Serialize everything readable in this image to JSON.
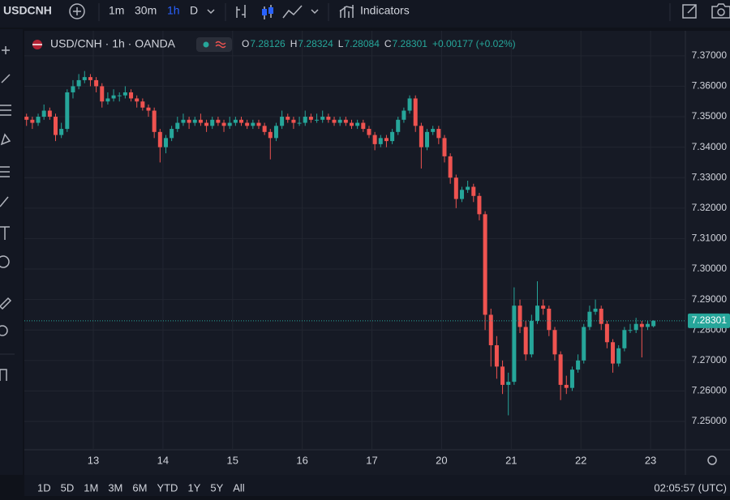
{
  "toolbar": {
    "symbol": "USDCNH",
    "intervals": [
      "1m",
      "30m",
      "1h",
      "D"
    ],
    "active_interval_index": 2,
    "indicators": "Indicators"
  },
  "chart_data": {
    "type": "candlestick",
    "title": "USD/CNH · 1h · OANDA",
    "ohlc_labels": [
      "O",
      "H",
      "L",
      "C"
    ],
    "change": "+0.00177 (+0.02%)",
    "up_color": "#26a69a",
    "down_color": "#ef5350",
    "grid": true,
    "last_price_line": true,
    "xlim": [
      -0.38,
      113.5
    ],
    "xticks": [
      {
        "value": 11.5,
        "label": "13"
      },
      {
        "value": 23.5,
        "label": "14"
      },
      {
        "value": 35.5,
        "label": "15"
      },
      {
        "value": 47.5,
        "label": "16"
      },
      {
        "value": 59.5,
        "label": "17"
      },
      {
        "value": 71.5,
        "label": "20"
      },
      {
        "value": 83.5,
        "label": "21"
      },
      {
        "value": 95.5,
        "label": "22"
      },
      {
        "value": 107.5,
        "label": "23"
      }
    ],
    "ylim": [
      7.2407,
      7.3782
    ],
    "yticks": [
      {
        "value": 7.37,
        "label": "7.37000"
      },
      {
        "value": 7.36,
        "label": "7.36000"
      },
      {
        "value": 7.35,
        "label": "7.35000"
      },
      {
        "value": 7.34,
        "label": "7.34000"
      },
      {
        "value": 7.33,
        "label": "7.33000"
      },
      {
        "value": 7.32,
        "label": "7.32000"
      },
      {
        "value": 7.31,
        "label": "7.31000"
      },
      {
        "value": 7.3,
        "label": "7.30000"
      },
      {
        "value": 7.29,
        "label": "7.29000"
      },
      {
        "value": 7.28,
        "label": "7.28000"
      },
      {
        "value": 7.27,
        "label": "7.27000"
      },
      {
        "value": 7.26,
        "label": "7.26000"
      },
      {
        "value": 7.25,
        "label": "7.25000"
      }
    ],
    "candles": [
      [
        7.35,
        7.351,
        7.347,
        7.349
      ],
      [
        7.349,
        7.35,
        7.346,
        7.348
      ],
      [
        7.348,
        7.351,
        7.347,
        7.35
      ],
      [
        7.35,
        7.354,
        7.349,
        7.352
      ],
      [
        7.352,
        7.353,
        7.349,
        7.35
      ],
      [
        7.35,
        7.351,
        7.342,
        7.344
      ],
      [
        7.344,
        7.348,
        7.343,
        7.346
      ],
      [
        7.346,
        7.359,
        7.345,
        7.358
      ],
      [
        7.358,
        7.362,
        7.356,
        7.36
      ],
      [
        7.36,
        7.364,
        7.359,
        7.362
      ],
      [
        7.362,
        7.365,
        7.361,
        7.363
      ],
      [
        7.363,
        7.364,
        7.36,
        7.362
      ],
      [
        7.362,
        7.363,
        7.358,
        7.36
      ],
      [
        7.36,
        7.361,
        7.353,
        7.355
      ],
      [
        7.355,
        7.358,
        7.354,
        7.356
      ],
      [
        7.356,
        7.359,
        7.355,
        7.357
      ],
      [
        7.357,
        7.358,
        7.355,
        7.357
      ],
      [
        7.357,
        7.36,
        7.356,
        7.358
      ],
      [
        7.358,
        7.359,
        7.355,
        7.356
      ],
      [
        7.356,
        7.357,
        7.353,
        7.355
      ],
      [
        7.355,
        7.356,
        7.352,
        7.353
      ],
      [
        7.353,
        7.354,
        7.35,
        7.352
      ],
      [
        7.352,
        7.353,
        7.343,
        7.345
      ],
      [
        7.345,
        7.346,
        7.335,
        7.34
      ],
      [
        7.34,
        7.344,
        7.338,
        7.343
      ],
      [
        7.343,
        7.347,
        7.342,
        7.346
      ],
      [
        7.346,
        7.35,
        7.345,
        7.348
      ],
      [
        7.348,
        7.351,
        7.347,
        7.349
      ],
      [
        7.349,
        7.35,
        7.346,
        7.348
      ],
      [
        7.348,
        7.35,
        7.347,
        7.349
      ],
      [
        7.349,
        7.351,
        7.347,
        7.348
      ],
      [
        7.348,
        7.349,
        7.345,
        7.347
      ],
      [
        7.347,
        7.35,
        7.346,
        7.349
      ],
      [
        7.349,
        7.35,
        7.347,
        7.348
      ],
      [
        7.348,
        7.349,
        7.345,
        7.347
      ],
      [
        7.347,
        7.35,
        7.346,
        7.348
      ],
      [
        7.348,
        7.35,
        7.347,
        7.349
      ],
      [
        7.349,
        7.35,
        7.347,
        7.348
      ],
      [
        7.348,
        7.349,
        7.346,
        7.347
      ],
      [
        7.347,
        7.349,
        7.346,
        7.348
      ],
      [
        7.348,
        7.349,
        7.346,
        7.347
      ],
      [
        7.347,
        7.348,
        7.344,
        7.345
      ],
      [
        7.345,
        7.346,
        7.336,
        7.343
      ],
      [
        7.343,
        7.348,
        7.342,
        7.347
      ],
      [
        7.347,
        7.352,
        7.346,
        7.35
      ],
      [
        7.35,
        7.351,
        7.348,
        7.349
      ],
      [
        7.349,
        7.35,
        7.346,
        7.348
      ],
      [
        7.348,
        7.35,
        7.347,
        7.348
      ],
      [
        7.348,
        7.352,
        7.347,
        7.35
      ],
      [
        7.35,
        7.351,
        7.348,
        7.349
      ],
      [
        7.349,
        7.351,
        7.348,
        7.349
      ],
      [
        7.349,
        7.352,
        7.348,
        7.35
      ],
      [
        7.35,
        7.351,
        7.348,
        7.349
      ],
      [
        7.349,
        7.35,
        7.347,
        7.348
      ],
      [
        7.348,
        7.35,
        7.347,
        7.349
      ],
      [
        7.349,
        7.35,
        7.347,
        7.348
      ],
      [
        7.348,
        7.349,
        7.346,
        7.347
      ],
      [
        7.347,
        7.349,
        7.346,
        7.348
      ],
      [
        7.348,
        7.349,
        7.345,
        7.346
      ],
      [
        7.346,
        7.347,
        7.343,
        7.344
      ],
      [
        7.344,
        7.345,
        7.339,
        7.341
      ],
      [
        7.341,
        7.344,
        7.34,
        7.343
      ],
      [
        7.343,
        7.344,
        7.34,
        7.342
      ],
      [
        7.342,
        7.346,
        7.341,
        7.345
      ],
      [
        7.345,
        7.35,
        7.344,
        7.349
      ],
      [
        7.349,
        7.353,
        7.348,
        7.352
      ],
      [
        7.352,
        7.357,
        7.351,
        7.356
      ],
      [
        7.356,
        7.357,
        7.345,
        7.347
      ],
      [
        7.347,
        7.348,
        7.333,
        7.34
      ],
      [
        7.34,
        7.346,
        7.339,
        7.345
      ],
      [
        7.345,
        7.347,
        7.344,
        7.346
      ],
      [
        7.346,
        7.347,
        7.341,
        7.343
      ],
      [
        7.343,
        7.344,
        7.335,
        7.337
      ],
      [
        7.337,
        7.338,
        7.328,
        7.33
      ],
      [
        7.33,
        7.331,
        7.32,
        7.323
      ],
      [
        7.323,
        7.327,
        7.322,
        7.326
      ],
      [
        7.326,
        7.329,
        7.325,
        7.327
      ],
      [
        7.327,
        7.328,
        7.322,
        7.324
      ],
      [
        7.324,
        7.325,
        7.316,
        7.318
      ],
      [
        7.318,
        7.319,
        7.28,
        7.285
      ],
      [
        7.285,
        7.287,
        7.268,
        7.275
      ],
      [
        7.275,
        7.278,
        7.264,
        7.268
      ],
      [
        7.268,
        7.27,
        7.259,
        7.262
      ],
      [
        7.262,
        7.266,
        7.252,
        7.263
      ],
      [
        7.263,
        7.294,
        7.262,
        7.288
      ],
      [
        7.288,
        7.29,
        7.279,
        7.281
      ],
      [
        7.281,
        7.283,
        7.27,
        7.272
      ],
      [
        7.272,
        7.285,
        7.271,
        7.283
      ],
      [
        7.283,
        7.296,
        7.282,
        7.288
      ],
      [
        7.288,
        7.29,
        7.285,
        7.287
      ],
      [
        7.287,
        7.288,
        7.278,
        7.28
      ],
      [
        7.28,
        7.281,
        7.27,
        7.272
      ],
      [
        7.272,
        7.273,
        7.257,
        7.262
      ],
      [
        7.262,
        7.265,
        7.259,
        7.261
      ],
      [
        7.261,
        7.268,
        7.26,
        7.267
      ],
      [
        7.267,
        7.272,
        7.266,
        7.27
      ],
      [
        7.27,
        7.282,
        7.269,
        7.281
      ],
      [
        7.281,
        7.288,
        7.28,
        7.286
      ],
      [
        7.286,
        7.29,
        7.285,
        7.287
      ],
      [
        7.287,
        7.288,
        7.28,
        7.282
      ],
      [
        7.282,
        7.283,
        7.274,
        7.276
      ],
      [
        7.276,
        7.277,
        7.266,
        7.269
      ],
      [
        7.269,
        7.275,
        7.268,
        7.274
      ],
      [
        7.274,
        7.281,
        7.273,
        7.28
      ],
      [
        7.28,
        7.282,
        7.279,
        7.28
      ],
      [
        7.28,
        7.284,
        7.279,
        7.282
      ],
      [
        7.282,
        7.283,
        7.271,
        7.281
      ],
      [
        7.281,
        7.283,
        7.28,
        7.282
      ],
      [
        7.28126,
        7.28324,
        7.28084,
        7.28301
      ]
    ]
  },
  "range_buttons": [
    "1D",
    "5D",
    "1M",
    "3M",
    "6M",
    "YTD",
    "1Y",
    "5Y",
    "All"
  ],
  "clock": "02:05:57 (UTC)"
}
